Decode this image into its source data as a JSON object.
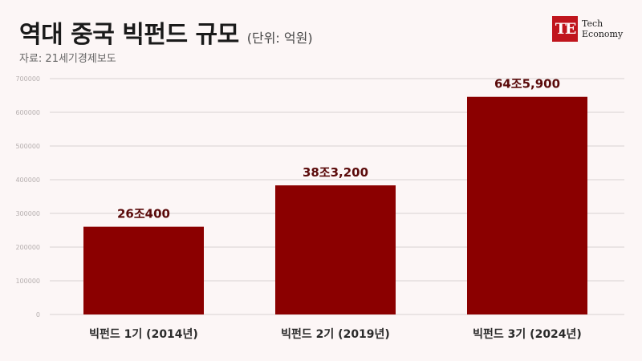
{
  "header": {
    "title": "역대 중국 빅펀드 규모",
    "unit": "(단위: 억원)",
    "source": "자료: 21세기경제보도"
  },
  "logo": {
    "mark": "TE",
    "line1": "Tech",
    "line2": "Economy",
    "color": "#c0151d"
  },
  "chart_data": {
    "type": "bar",
    "categories": [
      "빅펀드 1기 (2014년)",
      "빅펀드 2기 (2019년)",
      "빅펀드 3기 (2024년)"
    ],
    "values": [
      260400,
      383200,
      645900
    ],
    "data_labels": [
      "26조400",
      "38조3,200",
      "64조5,900"
    ],
    "y_ticks": [
      "0",
      "100000",
      "200000",
      "300000",
      "400000",
      "500000",
      "600000",
      "700000"
    ],
    "ylim": [
      0,
      700000
    ],
    "bar_color": "#8b0000",
    "grid": true
  }
}
